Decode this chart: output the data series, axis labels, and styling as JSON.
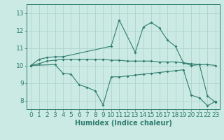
{
  "line1_x": [
    0,
    1,
    2,
    3,
    4,
    10,
    11,
    13,
    14,
    15,
    16,
    17,
    18,
    19,
    20,
    21,
    22,
    23
  ],
  "line1_y": [
    10.0,
    10.35,
    10.45,
    10.5,
    10.5,
    11.1,
    12.6,
    10.75,
    12.2,
    12.45,
    12.15,
    11.45,
    11.1,
    10.15,
    10.0,
    10.05,
    8.25,
    7.9
  ],
  "line2_x": [
    0,
    1,
    2,
    3,
    4,
    5,
    6,
    7,
    8,
    9,
    10,
    11,
    12,
    13,
    14,
    15,
    16,
    17,
    18,
    19,
    20,
    21,
    22,
    23
  ],
  "line2_y": [
    10.0,
    10.1,
    10.25,
    10.3,
    10.35,
    10.35,
    10.35,
    10.35,
    10.35,
    10.35,
    10.3,
    10.3,
    10.25,
    10.25,
    10.25,
    10.25,
    10.2,
    10.2,
    10.2,
    10.15,
    10.1,
    10.05,
    10.05,
    10.0
  ],
  "line3_x": [
    0,
    3,
    4,
    5,
    6,
    7,
    8,
    9,
    10,
    11,
    12,
    13,
    14,
    15,
    16,
    17,
    18,
    19,
    20,
    21,
    22,
    23
  ],
  "line3_y": [
    10.0,
    10.05,
    9.55,
    9.5,
    8.9,
    8.75,
    8.55,
    7.75,
    9.35,
    9.35,
    9.4,
    9.45,
    9.5,
    9.55,
    9.6,
    9.65,
    9.7,
    9.75,
    8.3,
    8.15,
    7.7,
    7.95
  ],
  "line_color": "#2e7d6e",
  "bg_color": "#cceae4",
  "grid_color": "#aed4cc",
  "xlabel": "Humidex (Indice chaleur)",
  "xlim": [
    -0.5,
    23.5
  ],
  "ylim": [
    7.5,
    13.5
  ],
  "xticks": [
    0,
    1,
    2,
    3,
    4,
    5,
    6,
    7,
    8,
    9,
    10,
    11,
    12,
    13,
    14,
    15,
    16,
    17,
    18,
    19,
    20,
    21,
    22,
    23
  ],
  "yticks": [
    8,
    9,
    10,
    11,
    12,
    13
  ],
  "xlabel_fontsize": 7,
  "tick_fontsize": 6.5
}
